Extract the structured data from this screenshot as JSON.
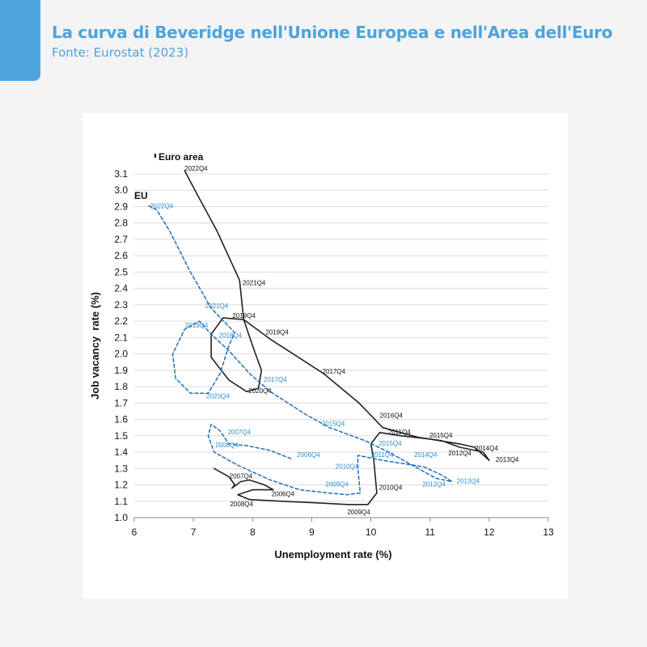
{
  "header": {
    "title": "La curva di Beveridge nell'Unione Europea e nell'Area dell'Euro",
    "subtitle": "Fonte: Eurostat (2023)"
  },
  "colors": {
    "accent": "#4da3dc",
    "euro_area_line": "#222222",
    "eu_line": "#1f6fbf",
    "eu_label": "#2e8fd0",
    "grid": "#dcdcdc"
  },
  "chart_data": {
    "type": "line",
    "xlabel": "Unemployment rate (%)",
    "ylabel": "Job vacancy  rate (%)",
    "xlim": [
      6,
      13
    ],
    "ylim": [
      1.0,
      3.1
    ],
    "x_ticks": [
      "6",
      "7",
      "8",
      "9",
      "10",
      "11",
      "12",
      "13"
    ],
    "y_ticks": [
      "1.0",
      "1.1",
      "1.2",
      "1.3",
      "1.4",
      "1.5",
      "1.6",
      "1.7",
      "1.8",
      "1.9",
      "2.0",
      "2.1",
      "2.2",
      "2.3",
      "2.4",
      "2.5",
      "2.6",
      "2.7",
      "2.8",
      "2.9",
      "3.0",
      "3.1"
    ],
    "grid": "horizontal",
    "series": [
      {
        "name": "Euro area",
        "style": "solid",
        "points": [
          [
            7.35,
            1.3
          ],
          [
            7.6,
            1.25
          ],
          [
            7.7,
            1.2
          ],
          [
            7.65,
            1.18
          ],
          [
            7.8,
            1.22
          ],
          [
            7.95,
            1.23
          ],
          [
            8.2,
            1.2
          ],
          [
            8.35,
            1.17
          ],
          [
            8.0,
            1.17
          ],
          [
            7.75,
            1.14
          ],
          [
            7.95,
            1.11
          ],
          [
            8.5,
            1.1
          ],
          [
            9.1,
            1.09
          ],
          [
            9.6,
            1.08
          ],
          [
            9.95,
            1.08
          ],
          [
            10.1,
            1.15
          ],
          [
            10.05,
            1.35
          ],
          [
            10.0,
            1.45
          ],
          [
            10.15,
            1.52
          ],
          [
            10.5,
            1.5
          ],
          [
            11.0,
            1.48
          ],
          [
            11.5,
            1.45
          ],
          [
            11.75,
            1.43
          ],
          [
            12.0,
            1.35
          ],
          [
            11.9,
            1.4
          ],
          [
            11.5,
            1.43
          ],
          [
            11.2,
            1.47
          ],
          [
            10.8,
            1.49
          ],
          [
            10.2,
            1.55
          ],
          [
            9.8,
            1.7
          ],
          [
            9.2,
            1.88
          ],
          [
            8.6,
            2.02
          ],
          [
            8.3,
            2.09
          ],
          [
            7.85,
            2.21
          ],
          [
            7.5,
            2.22
          ],
          [
            7.3,
            2.12
          ],
          [
            7.3,
            1.98
          ],
          [
            7.6,
            1.84
          ],
          [
            7.9,
            1.77
          ],
          [
            8.1,
            1.79
          ],
          [
            8.15,
            1.9
          ],
          [
            8.0,
            2.05
          ],
          [
            7.85,
            2.21
          ],
          [
            7.78,
            2.45
          ],
          [
            7.4,
            2.75
          ],
          [
            7.1,
            2.95
          ],
          [
            6.85,
            3.12
          ]
        ],
        "labels": [
          {
            "text": "2022Q4",
            "x": 6.85,
            "y": 3.12
          },
          {
            "text": "2021Q4",
            "x": 7.83,
            "y": 2.42
          },
          {
            "text": "2019Q4",
            "x": 7.66,
            "y": 2.22
          },
          {
            "text": "2018Q4",
            "x": 8.22,
            "y": 2.12
          },
          {
            "text": "2017Q4",
            "x": 9.18,
            "y": 1.88
          },
          {
            "text": "2020Q4",
            "x": 7.93,
            "y": 1.76
          },
          {
            "text": "2016Q4",
            "x": 10.15,
            "y": 1.61
          },
          {
            "text": "2011Q4",
            "x": 10.29,
            "y": 1.51
          },
          {
            "text": "2015Q4",
            "x": 10.99,
            "y": 1.49
          },
          {
            "text": "2012Q4",
            "x": 11.31,
            "y": 1.38
          },
          {
            "text": "2014Q4",
            "x": 11.76,
            "y": 1.41
          },
          {
            "text": "2013Q4",
            "x": 12.11,
            "y": 1.34
          },
          {
            "text": "2007Q4",
            "x": 7.61,
            "y": 1.24
          },
          {
            "text": "2006Q4",
            "x": 8.32,
            "y": 1.13
          },
          {
            "text": "2008Q4",
            "x": 7.62,
            "y": 1.07
          },
          {
            "text": "2010Q4",
            "x": 10.14,
            "y": 1.17
          },
          {
            "text": "2009Q4",
            "x": 9.6,
            "y": 1.02
          }
        ]
      },
      {
        "name": "EU",
        "style": "dashed",
        "points": [
          [
            8.65,
            1.36
          ],
          [
            8.3,
            1.41
          ],
          [
            7.9,
            1.44
          ],
          [
            7.6,
            1.45
          ],
          [
            7.45,
            1.53
          ],
          [
            7.3,
            1.57
          ],
          [
            7.25,
            1.5
          ],
          [
            7.35,
            1.4
          ],
          [
            7.75,
            1.32
          ],
          [
            8.3,
            1.23
          ],
          [
            8.8,
            1.17
          ],
          [
            9.3,
            1.15
          ],
          [
            9.6,
            1.14
          ],
          [
            9.82,
            1.15
          ],
          [
            9.78,
            1.3
          ],
          [
            9.78,
            1.38
          ],
          [
            10.2,
            1.35
          ],
          [
            10.9,
            1.31
          ],
          [
            11.2,
            1.26
          ],
          [
            11.37,
            1.22
          ],
          [
            11.1,
            1.24
          ],
          [
            10.7,
            1.32
          ],
          [
            10.3,
            1.4
          ],
          [
            9.9,
            1.47
          ],
          [
            9.3,
            1.55
          ],
          [
            8.9,
            1.63
          ],
          [
            8.3,
            1.77
          ],
          [
            7.95,
            1.88
          ],
          [
            7.6,
            2.02
          ],
          [
            7.3,
            2.12
          ],
          [
            7.1,
            2.2
          ],
          [
            6.85,
            2.15
          ],
          [
            6.65,
            2.0
          ],
          [
            6.7,
            1.85
          ],
          [
            6.95,
            1.76
          ],
          [
            7.25,
            1.76
          ],
          [
            7.45,
            1.88
          ],
          [
            7.6,
            2.05
          ],
          [
            7.7,
            2.13
          ],
          [
            7.3,
            2.28
          ],
          [
            6.95,
            2.5
          ],
          [
            6.6,
            2.75
          ],
          [
            6.38,
            2.88
          ],
          [
            6.22,
            2.91
          ]
        ],
        "labels": [
          {
            "text": "2022Q4",
            "x": 6.27,
            "y": 2.89
          },
          {
            "text": "2021Q4",
            "x": 7.2,
            "y": 2.28
          },
          {
            "text": "2019Q4",
            "x": 6.86,
            "y": 2.16
          },
          {
            "text": "2018Q4",
            "x": 7.43,
            "y": 2.1
          },
          {
            "text": "2017Q4",
            "x": 8.19,
            "y": 1.83
          },
          {
            "text": "2020Q4",
            "x": 7.22,
            "y": 1.73
          },
          {
            "text": "2015Q4",
            "x": 9.17,
            "y": 1.56
          },
          {
            "text": "2015Q4",
            "x": 10.13,
            "y": 1.44
          },
          {
            "text": "2007Q4",
            "x": 7.58,
            "y": 1.51
          },
          {
            "text": "2008Q4",
            "x": 7.37,
            "y": 1.43
          },
          {
            "text": "2006Q4",
            "x": 8.75,
            "y": 1.37
          },
          {
            "text": "2011Q4",
            "x": 10.0,
            "y": 1.37
          },
          {
            "text": "2014Q4",
            "x": 10.73,
            "y": 1.37
          },
          {
            "text": "2010Q4",
            "x": 9.4,
            "y": 1.3
          },
          {
            "text": "2009Q4",
            "x": 9.23,
            "y": 1.19
          },
          {
            "text": "2012Q4",
            "x": 10.87,
            "y": 1.19
          },
          {
            "text": "2013Q4",
            "x": 11.45,
            "y": 1.21
          }
        ]
      }
    ],
    "legend_labels": [
      {
        "text": "Euro area",
        "series": "Euro area"
      },
      {
        "text": "EU",
        "series": "EU"
      }
    ]
  }
}
